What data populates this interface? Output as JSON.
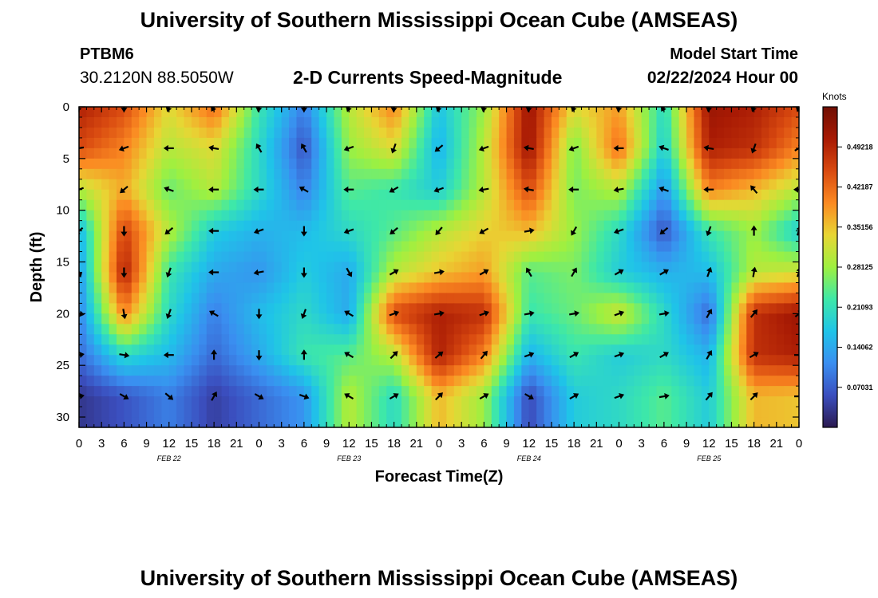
{
  "page": {
    "title": "University of Southern Mississippi Ocean Cube (AMSEAS)",
    "station": "PTBM6",
    "coords": "30.2120N  88.5050W",
    "subtitle": "2-D Currents Speed-Magnitude",
    "model_start_label": "Model Start Time",
    "model_start_value": "02/22/2024 Hour 00",
    "footer_title": "University of Southern Mississippi Ocean Cube (AMSEAS)"
  },
  "chart_data": {
    "type": "heatmap",
    "title": "2-D Currents Speed-Magnitude",
    "xlabel": "Forecast Time(Z)",
    "ylabel": "Depth (ft)",
    "colorbar_label": "Knots",
    "x_ticks": [
      "0",
      "3",
      "6",
      "9",
      "12",
      "15",
      "18",
      "21",
      "0",
      "3",
      "6",
      "9",
      "12",
      "15",
      "18",
      "21",
      "0",
      "3",
      "6",
      "9",
      "12",
      "15",
      "18",
      "21",
      "0",
      "3",
      "6",
      "9",
      "12",
      "15",
      "18",
      "21",
      "0"
    ],
    "date_labels": [
      {
        "label": "FEB 22",
        "hour": 12
      },
      {
        "label": "FEB 23",
        "hour": 36
      },
      {
        "label": "FEB 24",
        "hour": 60
      },
      {
        "label": "FEB 25",
        "hour": 84
      }
    ],
    "x_range": [
      0,
      96
    ],
    "y_ticks": [
      0,
      5,
      10,
      15,
      20,
      25,
      30
    ],
    "y_range": [
      0,
      31
    ],
    "colorbar_ticks": [
      "0.07031",
      "0.14062",
      "0.21093",
      "0.28125",
      "0.35156",
      "0.42187",
      "0.49218"
    ],
    "colorbar_range": [
      0,
      0.5625
    ],
    "colormap": [
      "#2b1a50",
      "#3b4fbf",
      "#3a8ef0",
      "#1fc4e8",
      "#3ee8a8",
      "#9ef040",
      "#e8d634",
      "#fb8a22",
      "#d94a10",
      "#a81a04",
      "#700f04"
    ],
    "depth_levels_ft": [
      0,
      4,
      8,
      12,
      16,
      20,
      24,
      28
    ],
    "time_hours": [
      0,
      6,
      12,
      18,
      24,
      30,
      36,
      42,
      48,
      54,
      60,
      66,
      72,
      78,
      84,
      90,
      96
    ],
    "speed_knots": [
      [
        0.5,
        0.45,
        0.33,
        0.42,
        0.22,
        0.1,
        0.3,
        0.4,
        0.17,
        0.28,
        0.52,
        0.33,
        0.38,
        0.2,
        0.52,
        0.5,
        0.45
      ],
      [
        0.45,
        0.4,
        0.3,
        0.33,
        0.2,
        0.06,
        0.28,
        0.33,
        0.15,
        0.3,
        0.52,
        0.26,
        0.42,
        0.18,
        0.5,
        0.48,
        0.4
      ],
      [
        0.3,
        0.37,
        0.25,
        0.3,
        0.2,
        0.1,
        0.24,
        0.22,
        0.18,
        0.3,
        0.45,
        0.26,
        0.3,
        0.12,
        0.4,
        0.36,
        0.3
      ],
      [
        0.15,
        0.46,
        0.3,
        0.18,
        0.15,
        0.16,
        0.2,
        0.24,
        0.3,
        0.34,
        0.36,
        0.28,
        0.2,
        0.06,
        0.22,
        0.28,
        0.18
      ],
      [
        0.12,
        0.5,
        0.22,
        0.14,
        0.12,
        0.18,
        0.14,
        0.3,
        0.35,
        0.38,
        0.24,
        0.26,
        0.18,
        0.15,
        0.16,
        0.3,
        0.32
      ],
      [
        0.1,
        0.4,
        0.2,
        0.1,
        0.16,
        0.2,
        0.14,
        0.45,
        0.5,
        0.48,
        0.22,
        0.25,
        0.32,
        0.2,
        0.08,
        0.48,
        0.52
      ],
      [
        0.08,
        0.2,
        0.16,
        0.08,
        0.14,
        0.22,
        0.24,
        0.3,
        0.5,
        0.4,
        0.15,
        0.22,
        0.18,
        0.2,
        0.15,
        0.48,
        0.5
      ],
      [
        0.03,
        0.06,
        0.1,
        0.04,
        0.08,
        0.12,
        0.3,
        0.2,
        0.36,
        0.28,
        0.05,
        0.18,
        0.2,
        0.24,
        0.18,
        0.36,
        0.35
      ]
    ],
    "direction_deg": [
      [
        200,
        180,
        200,
        210,
        190,
        180,
        200,
        185,
        200,
        190,
        190,
        200,
        190,
        210,
        190,
        200,
        200
      ],
      [
        260,
        250,
        270,
        280,
        330,
        330,
        250,
        200,
        230,
        250,
        280,
        250,
        270,
        290,
        280,
        200,
        60
      ],
      [
        250,
        230,
        290,
        270,
        270,
        300,
        270,
        240,
        250,
        260,
        280,
        270,
        260,
        290,
        270,
        320,
        270
      ],
      [
        230,
        180,
        230,
        270,
        250,
        180,
        250,
        230,
        220,
        240,
        80,
        210,
        250,
        230,
        200,
        0,
        20
      ],
      [
        160,
        180,
        200,
        270,
        260,
        180,
        150,
        60,
        80,
        60,
        330,
        30,
        60,
        60,
        20,
        10,
        20
      ],
      [
        100,
        170,
        200,
        300,
        180,
        200,
        300,
        70,
        80,
        70,
        80,
        80,
        70,
        80,
        30,
        40,
        50
      ],
      [
        80,
        100,
        270,
        0,
        180,
        0,
        300,
        45,
        50,
        40,
        70,
        60,
        70,
        60,
        30,
        60,
        90
      ],
      [
        80,
        120,
        130,
        30,
        120,
        110,
        300,
        60,
        45,
        60,
        120,
        60,
        70,
        80,
        40,
        45,
        90
      ]
    ]
  }
}
